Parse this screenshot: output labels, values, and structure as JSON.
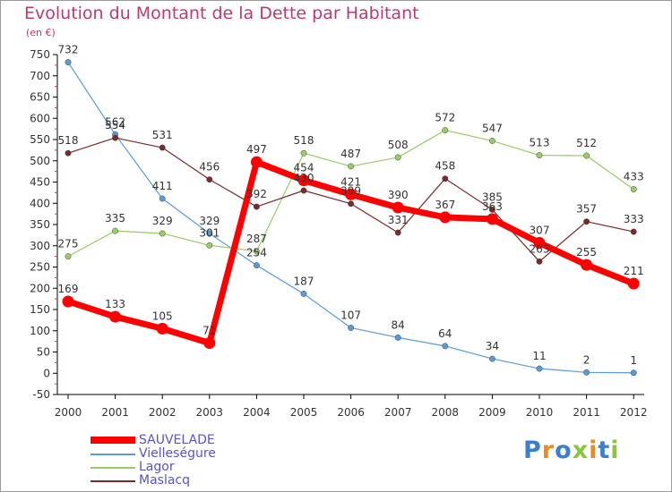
{
  "chart_data": {
    "type": "line",
    "title": "Evolution du Montant de la Dette par Habitant",
    "subtitle": "(en €)",
    "x": [
      "2000",
      "2001",
      "2002",
      "2003",
      "2004",
      "2005",
      "2006",
      "2007",
      "2008",
      "2009",
      "2010",
      "2011",
      "2012"
    ],
    "ylim": [
      -50,
      750
    ],
    "yticks": [
      -50,
      0,
      50,
      100,
      150,
      200,
      250,
      300,
      350,
      400,
      450,
      500,
      550,
      600,
      650,
      700,
      750
    ],
    "grid": false,
    "legend_position": "bottom-left",
    "series": [
      {
        "name": "SAUVELADE",
        "color": "#ff0000",
        "values": [
          169,
          133,
          105,
          71,
          497,
          454,
          421,
          390,
          367,
          363,
          307,
          255,
          211
        ]
      },
      {
        "name": "Vielleségure",
        "color": "#5a9bd4",
        "values": [
          732,
          562,
          411,
          329,
          254,
          187,
          107,
          84,
          64,
          34,
          11,
          2,
          1
        ]
      },
      {
        "name": "Lagor",
        "color": "#99cc66",
        "values": [
          275,
          335,
          329,
          301,
          287,
          518,
          487,
          508,
          572,
          547,
          513,
          512,
          433
        ]
      },
      {
        "name": "Maslacq",
        "color": "#7a2a2a",
        "values": [
          518,
          554,
          531,
          456,
          392,
          430,
          399,
          331,
          458,
          385,
          263,
          357,
          333
        ]
      }
    ]
  },
  "logo": {
    "letters": [
      {
        "ch": "P",
        "color": "#3b7fd0"
      },
      {
        "ch": "r",
        "color": "#f08a1c"
      },
      {
        "ch": "o",
        "color": "#3b7fd0"
      },
      {
        "ch": "x",
        "color": "#8cc63f"
      },
      {
        "ch": "i",
        "color": "#f08a1c"
      },
      {
        "ch": "t",
        "color": "#3b7fd0"
      },
      {
        "ch": "i",
        "color": "#8cc63f"
      }
    ]
  }
}
